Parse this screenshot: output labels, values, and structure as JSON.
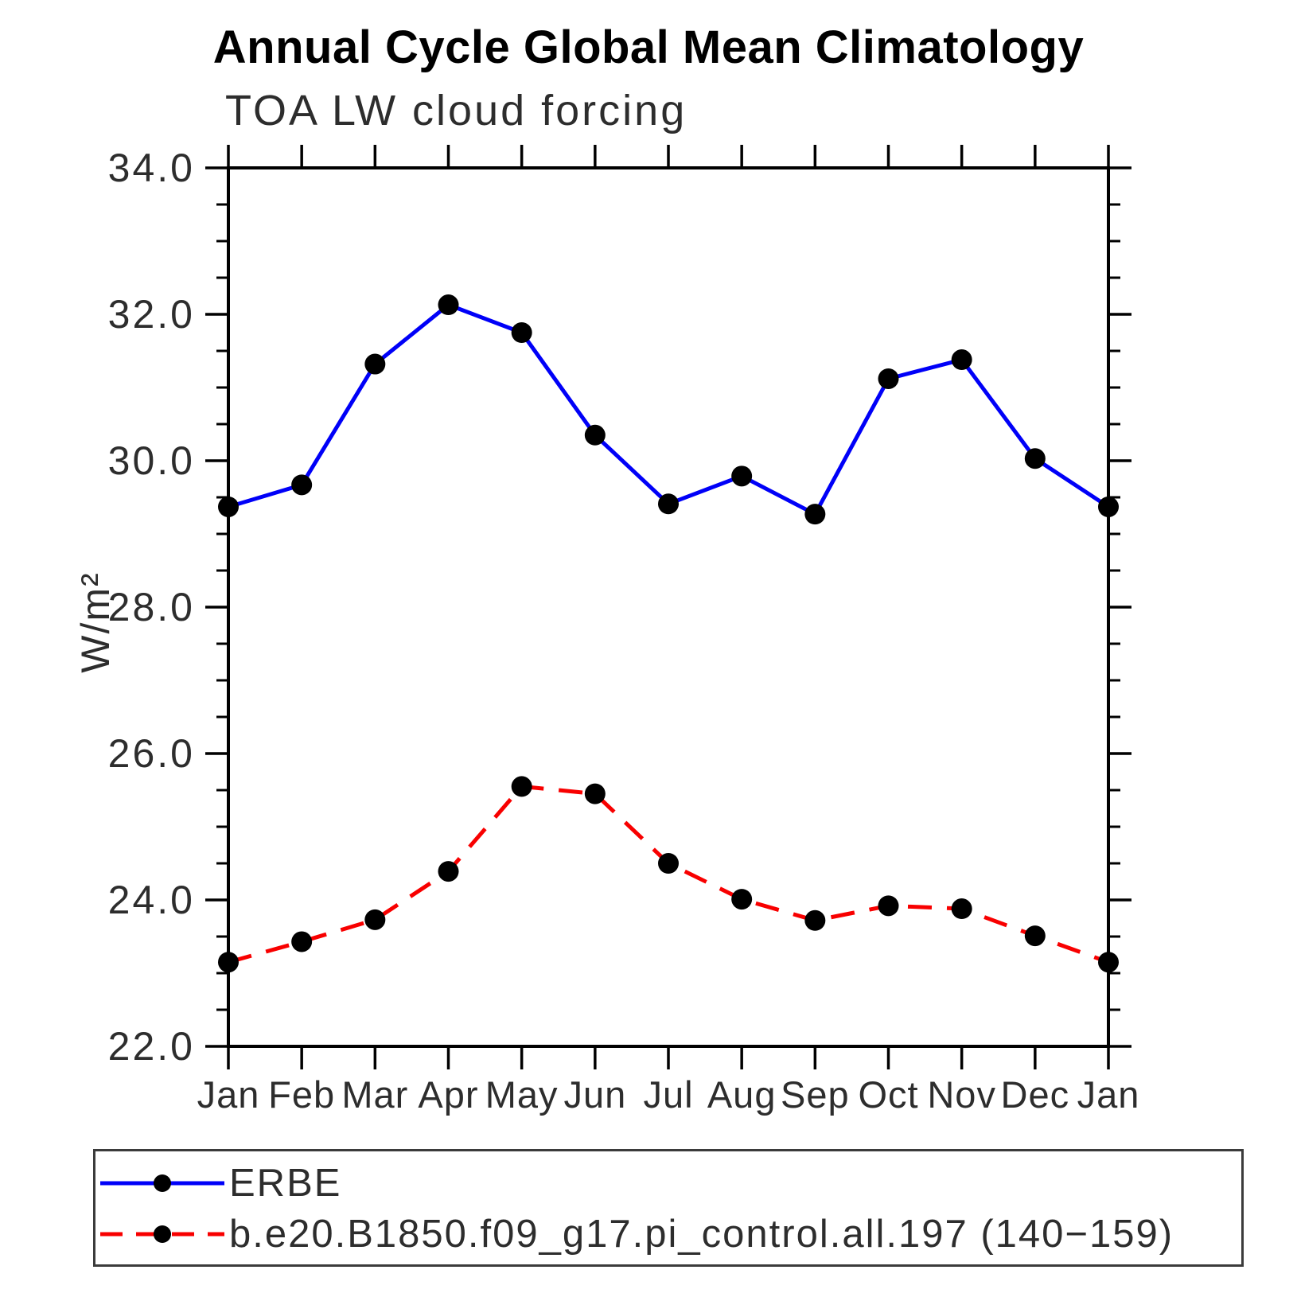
{
  "title": "Annual Cycle Global Mean Climatology",
  "chart_data": {
    "type": "line",
    "title": "Annual Cycle Global Mean Climatology",
    "subtitle": "TOA LW cloud forcing",
    "ylabel": "W/m²",
    "xlabel": "",
    "x_categories": [
      "Jan",
      "Feb",
      "Mar",
      "Apr",
      "May",
      "Jun",
      "Jul",
      "Aug",
      "Sep",
      "Oct",
      "Nov",
      "Dec",
      "Jan"
    ],
    "ylim": [
      22,
      34
    ],
    "ytick_labels": [
      "34.0",
      "32.0",
      "30.0",
      "28.0",
      "26.0",
      "24.0",
      "22.0"
    ],
    "minor_tick_step": 0.5,
    "grid": false,
    "legend_position": "bottom",
    "axis_color": "#000000",
    "text_color": "#2d2d2d",
    "series": [
      {
        "name": "ERBE",
        "color": "#0000f8",
        "line_style": "solid",
        "marker": "dot",
        "marker_color": "#000000",
        "values": [
          29.37,
          29.67,
          31.32,
          32.13,
          31.75,
          30.35,
          29.41,
          29.79,
          29.27,
          31.12,
          31.38,
          30.03,
          29.37
        ]
      },
      {
        "name": "b.e20.B1850.f09_g17.pi_control.all.197 (140−159)",
        "color": "#f80000",
        "line_style": "dashed",
        "marker": "dot",
        "marker_color": "#000000",
        "values": [
          23.15,
          23.43,
          23.73,
          24.39,
          25.55,
          25.45,
          24.5,
          24.01,
          23.72,
          23.92,
          23.88,
          23.51,
          23.15
        ]
      }
    ]
  }
}
